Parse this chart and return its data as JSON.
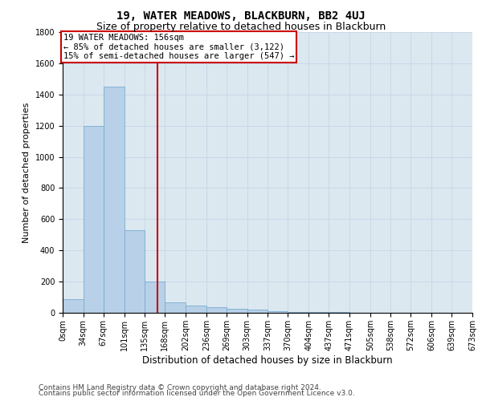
{
  "title": "19, WATER MEADOWS, BLACKBURN, BB2 4UJ",
  "subtitle": "Size of property relative to detached houses in Blackburn",
  "xlabel": "Distribution of detached houses by size in Blackburn",
  "ylabel": "Number of detached properties",
  "footer_line1": "Contains HM Land Registry data © Crown copyright and database right 2024.",
  "footer_line2": "Contains public sector information licensed under the Open Government Licence v3.0.",
  "bin_edges": [
    0,
    34,
    67,
    101,
    135,
    168,
    202,
    236,
    269,
    303,
    337,
    370,
    404,
    437,
    471,
    505,
    538,
    572,
    606,
    639,
    673
  ],
  "bin_labels": [
    "0sqm",
    "34sqm",
    "67sqm",
    "101sqm",
    "135sqm",
    "168sqm",
    "202sqm",
    "236sqm",
    "269sqm",
    "303sqm",
    "337sqm",
    "370sqm",
    "404sqm",
    "437sqm",
    "471sqm",
    "505sqm",
    "538sqm",
    "572sqm",
    "606sqm",
    "639sqm",
    "673sqm"
  ],
  "bar_heights": [
    90,
    1200,
    1450,
    530,
    200,
    65,
    45,
    35,
    25,
    20,
    10,
    5,
    5,
    3,
    2,
    1,
    1,
    0,
    0,
    0
  ],
  "bar_color": "#b8d0e8",
  "bar_edge_color": "#7aaed0",
  "vline_x": 156,
  "vline_color": "#cc0000",
  "annotation_box_text": "19 WATER MEADOWS: 156sqm\n← 85% of detached houses are smaller (3,122)\n15% of semi-detached houses are larger (547) →",
  "annotation_box_color": "#cc0000",
  "annotation_box_fill": "#ffffff",
  "ylim": [
    0,
    1800
  ],
  "yticks": [
    0,
    200,
    400,
    600,
    800,
    1000,
    1200,
    1400,
    1600,
    1800
  ],
  "grid_color": "#c8d8e8",
  "bg_color": "#dce8f0",
  "title_fontsize": 10,
  "subtitle_fontsize": 9,
  "ylabel_fontsize": 8,
  "xlabel_fontsize": 8.5,
  "tick_fontsize": 7,
  "annot_fontsize": 7.5,
  "footer_fontsize": 6.5
}
